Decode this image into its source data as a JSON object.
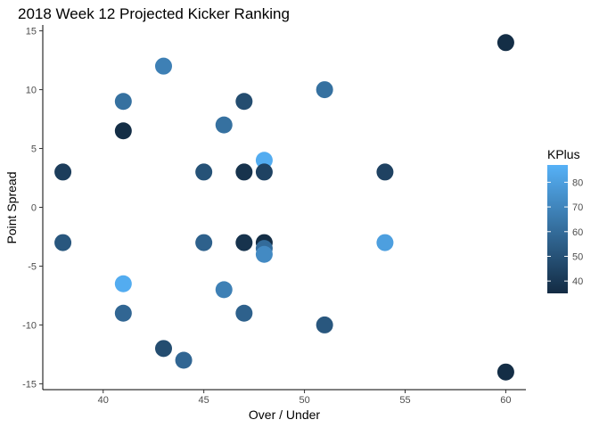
{
  "chart_data": {
    "type": "scatter",
    "title": "2018 Week 12 Projected Kicker Ranking",
    "xlabel": "Over / Under",
    "ylabel": "Point Spread",
    "xlim": [
      37.0,
      61.0
    ],
    "ylim": [
      -15.5,
      15.5
    ],
    "xticks": [
      40,
      45,
      50,
      55,
      60
    ],
    "yticks": [
      -15,
      -10,
      -5,
      0,
      5,
      10,
      15
    ],
    "grid": false,
    "legend": {
      "title": "KPlus",
      "position": "right",
      "range": [
        35,
        87
      ],
      "ticks": [
        40,
        50,
        60,
        70,
        80
      ],
      "low_color": "#132B43",
      "high_color": "#56B1F7"
    },
    "points": [
      {
        "x": 38,
        "y": 3,
        "kplus": 42
      },
      {
        "x": 38,
        "y": -3,
        "kplus": 52
      },
      {
        "x": 41,
        "y": 9,
        "kplus": 62
      },
      {
        "x": 41,
        "y": 6.5,
        "kplus": 36
      },
      {
        "x": 41,
        "y": -6.5,
        "kplus": 85
      },
      {
        "x": 41,
        "y": -9,
        "kplus": 58
      },
      {
        "x": 43,
        "y": 12,
        "kplus": 68
      },
      {
        "x": 43,
        "y": -12,
        "kplus": 48
      },
      {
        "x": 44,
        "y": -13,
        "kplus": 58
      },
      {
        "x": 45,
        "y": 3,
        "kplus": 50
      },
      {
        "x": 45,
        "y": -3,
        "kplus": 56
      },
      {
        "x": 46,
        "y": 7,
        "kplus": 62
      },
      {
        "x": 46,
        "y": -7,
        "kplus": 68
      },
      {
        "x": 47,
        "y": 9,
        "kplus": 48
      },
      {
        "x": 47,
        "y": 3,
        "kplus": 38
      },
      {
        "x": 47,
        "y": -3,
        "kplus": 38
      },
      {
        "x": 47,
        "y": -9,
        "kplus": 56
      },
      {
        "x": 48,
        "y": 4,
        "kplus": 85
      },
      {
        "x": 48,
        "y": 3,
        "kplus": 44
      },
      {
        "x": 48,
        "y": -3,
        "kplus": 36
      },
      {
        "x": 48,
        "y": -3.5,
        "kplus": 60
      },
      {
        "x": 48,
        "y": -4,
        "kplus": 72
      },
      {
        "x": 51,
        "y": 10,
        "kplus": 62
      },
      {
        "x": 51,
        "y": -10,
        "kplus": 52
      },
      {
        "x": 54,
        "y": 3,
        "kplus": 44
      },
      {
        "x": 54,
        "y": -3,
        "kplus": 80
      },
      {
        "x": 60,
        "y": 14,
        "kplus": 36
      },
      {
        "x": 60,
        "y": -14,
        "kplus": 36
      }
    ]
  }
}
